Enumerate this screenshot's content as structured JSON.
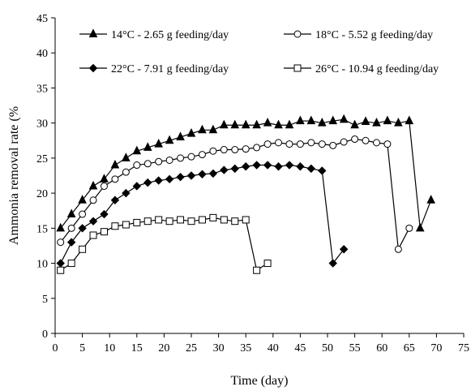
{
  "chart_data": {
    "type": "line",
    "title": "",
    "xlabel": "Time (day)",
    "ylabel": "Ammonia removal rate (%",
    "xlim": [
      0,
      75
    ],
    "ylim": [
      0,
      45
    ],
    "xticks": [
      0,
      5,
      10,
      15,
      20,
      25,
      30,
      35,
      40,
      45,
      50,
      55,
      60,
      65,
      70,
      75
    ],
    "yticks": [
      0,
      5,
      10,
      15,
      20,
      25,
      30,
      35,
      40,
      45
    ],
    "grid": false,
    "legend_position": "top",
    "series": [
      {
        "name": "14°C - 2.65 g feeding/day",
        "marker": "filled-triangle",
        "color": "#000000",
        "x": [
          1,
          3,
          5,
          7,
          9,
          11,
          13,
          15,
          17,
          19,
          21,
          23,
          25,
          27,
          29,
          31,
          33,
          35,
          37,
          39,
          41,
          43,
          45,
          47,
          49,
          51,
          53,
          55,
          57,
          59,
          61,
          63,
          65,
          67,
          69
        ],
        "y": [
          15,
          17,
          19,
          21,
          22,
          24,
          25,
          26,
          26.5,
          27,
          27.5,
          28,
          28.5,
          29,
          29,
          29.7,
          29.7,
          29.7,
          29.7,
          30,
          29.7,
          29.7,
          30.3,
          30.3,
          30,
          30.3,
          30.5,
          29.7,
          30.2,
          30,
          30.3,
          30,
          30.3,
          15,
          19
        ]
      },
      {
        "name": "18°C - 5.52 g feeding/day",
        "marker": "open-circle",
        "color": "#000000",
        "x": [
          1,
          3,
          5,
          7,
          9,
          11,
          13,
          15,
          17,
          19,
          21,
          23,
          25,
          27,
          29,
          31,
          33,
          35,
          37,
          39,
          41,
          43,
          45,
          47,
          49,
          51,
          53,
          55,
          57,
          59,
          61,
          63,
          65
        ],
        "y": [
          13,
          15,
          17,
          19,
          21,
          22,
          23,
          24,
          24.2,
          24.5,
          24.7,
          25,
          25.2,
          25.5,
          26,
          26.2,
          26.2,
          26.3,
          26.5,
          27,
          27.2,
          27,
          27,
          27.2,
          27,
          26.8,
          27.3,
          27.7,
          27.5,
          27.2,
          27,
          12,
          15
        ]
      },
      {
        "name": "22°C - 7.91 g feeding/day",
        "marker": "filled-diamond",
        "color": "#000000",
        "x": [
          1,
          3,
          5,
          7,
          9,
          11,
          13,
          15,
          17,
          19,
          21,
          23,
          25,
          27,
          29,
          31,
          33,
          35,
          37,
          39,
          41,
          43,
          45,
          47,
          49,
          51,
          53
        ],
        "y": [
          10,
          13,
          15,
          16,
          17,
          19,
          20,
          21,
          21.5,
          21.8,
          22,
          22.3,
          22.5,
          22.7,
          22.8,
          23.3,
          23.5,
          23.8,
          24,
          24,
          23.8,
          24,
          23.8,
          23.5,
          23.2,
          10,
          12
        ]
      },
      {
        "name": "26°C - 10.94 g feeding/day",
        "marker": "open-square",
        "color": "#000000",
        "x": [
          1,
          3,
          5,
          7,
          9,
          11,
          13,
          15,
          17,
          19,
          21,
          23,
          25,
          27,
          29,
          31,
          33,
          35,
          37,
          39
        ],
        "y": [
          9,
          10,
          12,
          14,
          14.5,
          15.3,
          15.5,
          15.8,
          16,
          16.2,
          16,
          16.2,
          16,
          16.2,
          16.5,
          16.2,
          16,
          16.2,
          9,
          10
        ]
      }
    ]
  }
}
